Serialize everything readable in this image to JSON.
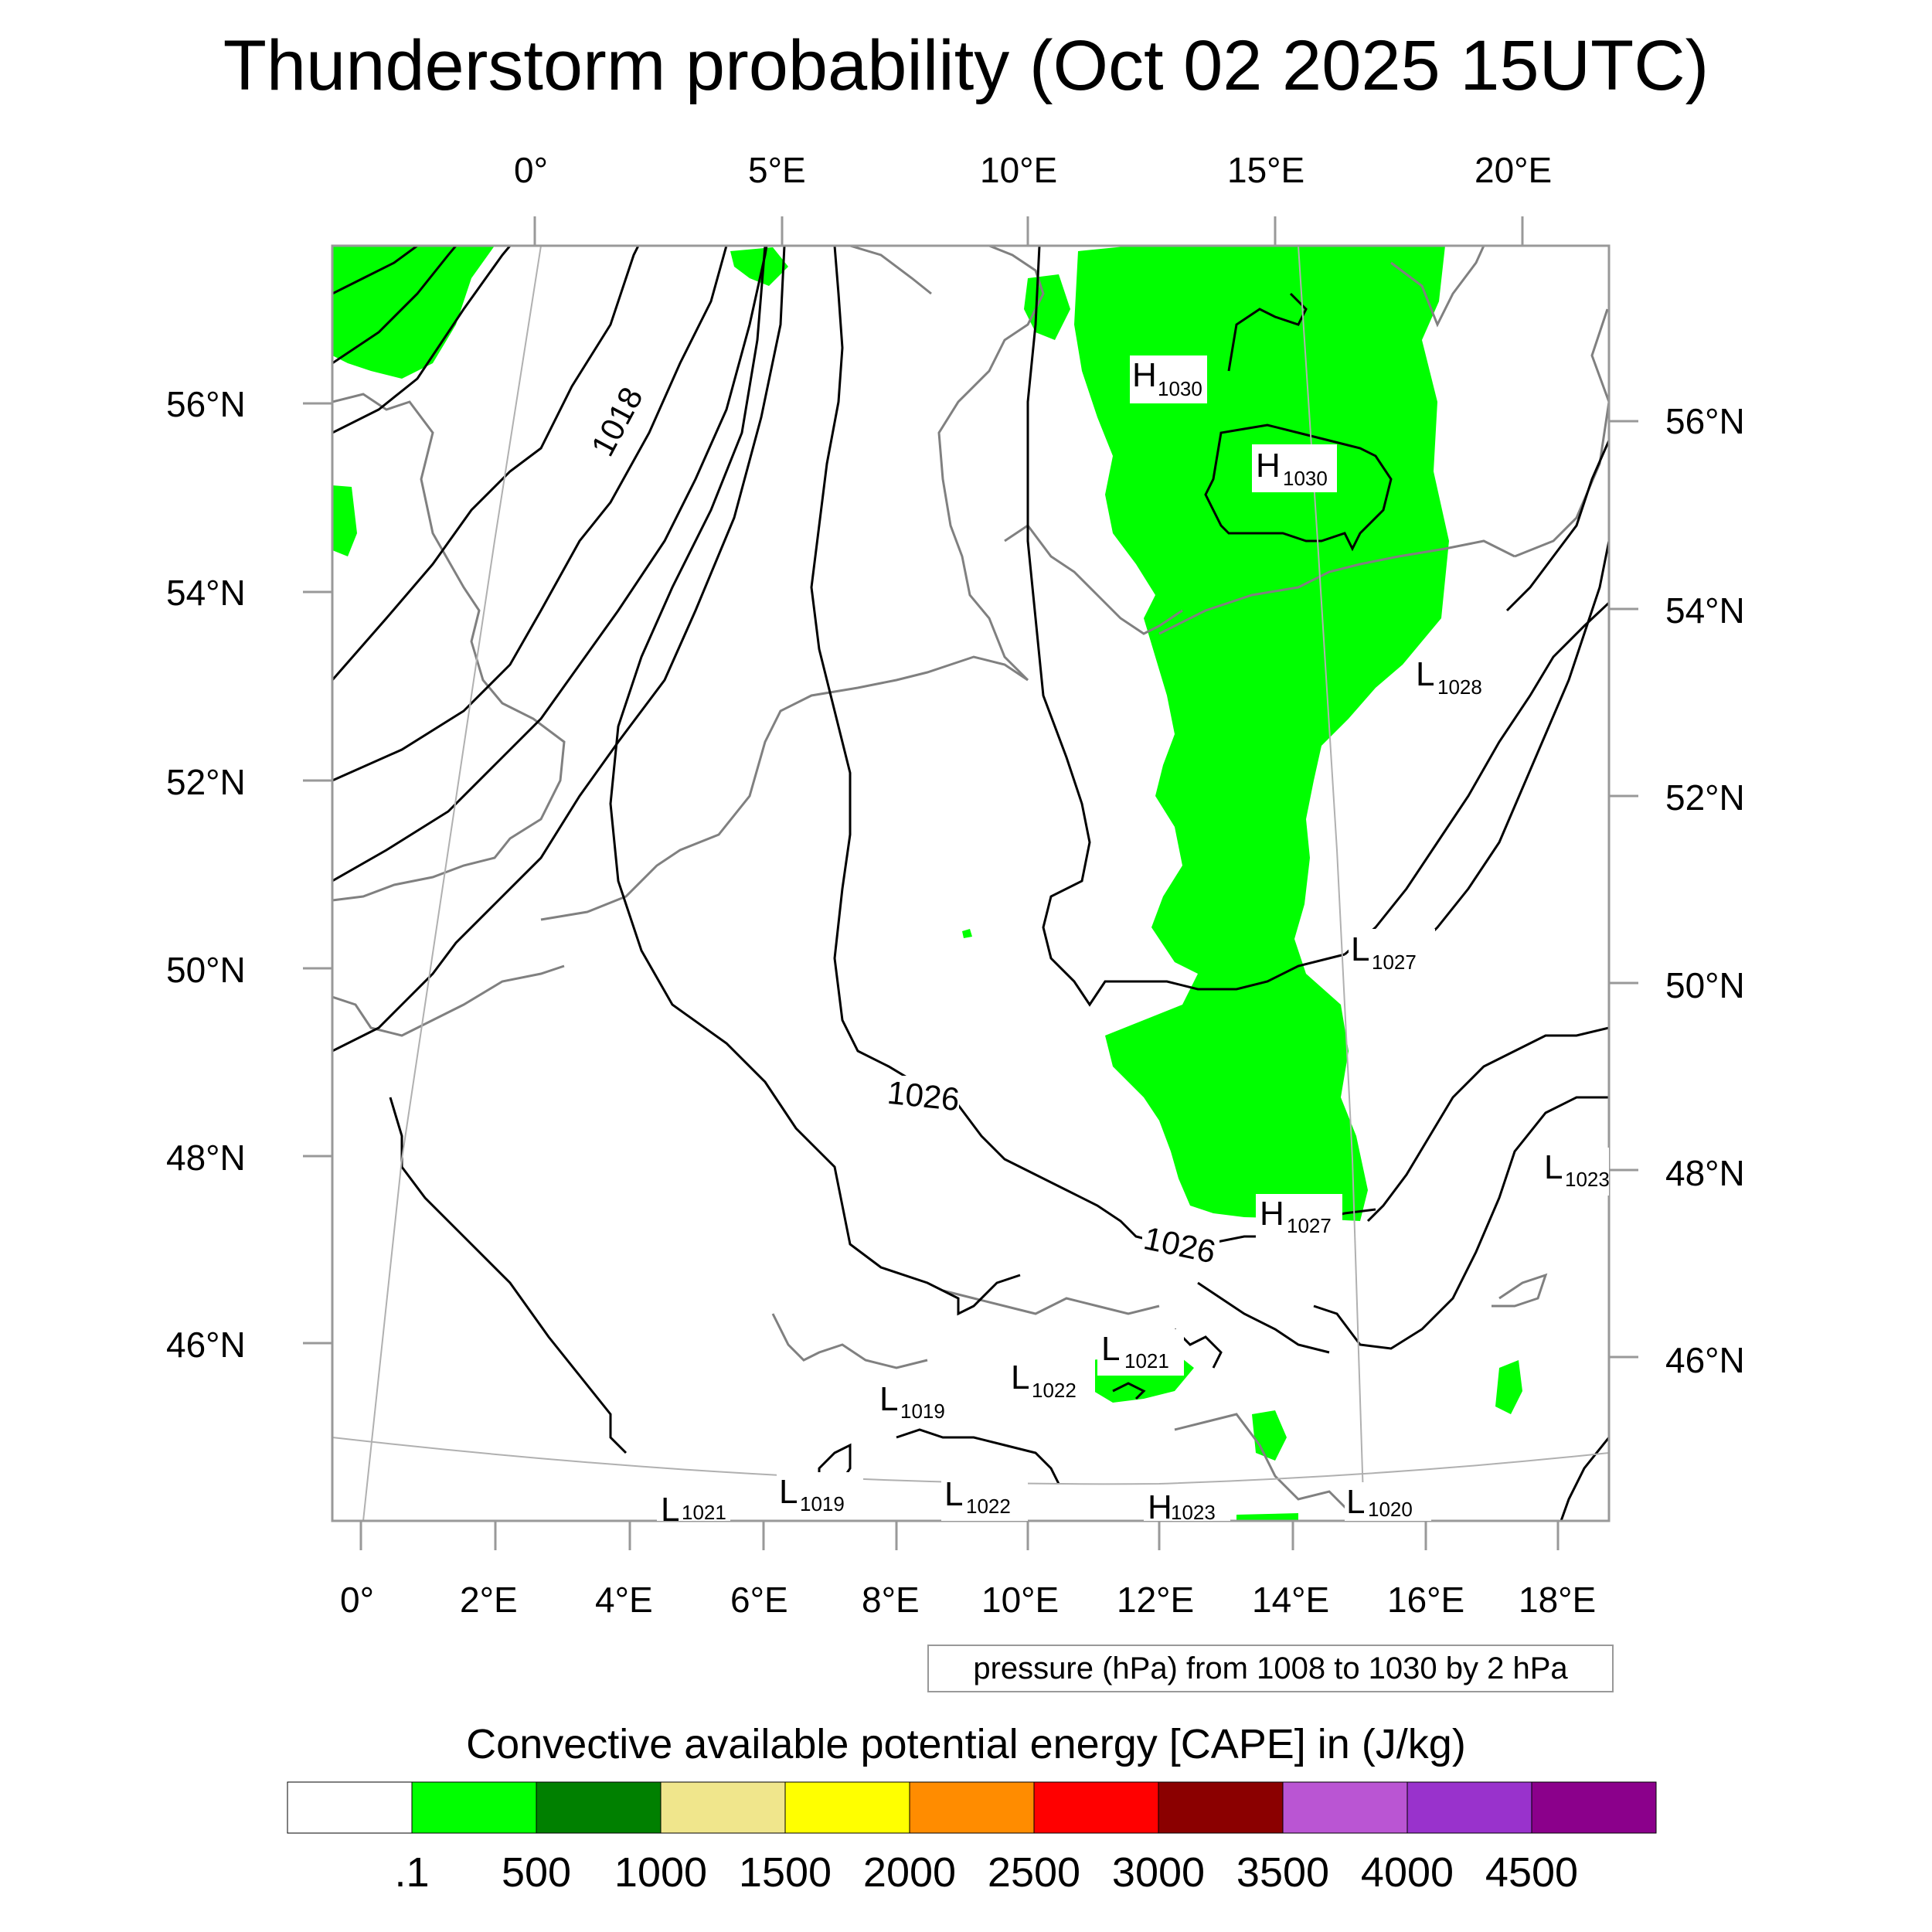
{
  "title": "Thunderstorm probability (Oct 02 2025 15UTC)",
  "top_axis_labels": [
    "0°",
    "5°E",
    "10°E",
    "15°E",
    "20°E"
  ],
  "bottom_axis_labels": [
    "0°",
    "2°E",
    "4°E",
    "6°E",
    "8°E",
    "10°E",
    "12°E",
    "14°E",
    "16°E",
    "18°E"
  ],
  "left_axis_labels": [
    "56°N",
    "54°N",
    "52°N",
    "50°N",
    "48°N",
    "46°N"
  ],
  "right_axis_labels": [
    "56°N",
    "54°N",
    "52°N",
    "50°N",
    "48°N",
    "46°N"
  ],
  "contour_labels": [
    "1018",
    "1026",
    "1026"
  ],
  "pressure_centers": [
    {
      "type": "H",
      "value": "1030"
    },
    {
      "type": "H",
      "value": "1030"
    },
    {
      "type": "L",
      "value": "1028"
    },
    {
      "type": "L",
      "value": "1027"
    },
    {
      "type": "L",
      "value": "1023"
    },
    {
      "type": "H",
      "value": "1027"
    },
    {
      "type": "L",
      "value": "1021"
    },
    {
      "type": "L",
      "value": "1022"
    },
    {
      "type": "L",
      "value": "1019"
    },
    {
      "type": "L",
      "value": "1019"
    },
    {
      "type": "L",
      "value": "1022"
    },
    {
      "type": "H",
      "value": "1023"
    },
    {
      "type": "L",
      "value": "1020"
    },
    {
      "type": "L",
      "value": "1021"
    }
  ],
  "contour_info": "pressure (hPa) from 1008 to 1030 by 2 hPa",
  "colorbar": {
    "title": "Convective available potential energy [CAPE] in (J/kg)",
    "labels": [
      ".1",
      "500",
      "1000",
      "1500",
      "2000",
      "2500",
      "3000",
      "3500",
      "4000",
      "4500"
    ],
    "colors": [
      "#ffffff",
      "#00ff00",
      "#008000",
      "#f0e68c",
      "#ffff00",
      "#ff8c00",
      "#ff0000",
      "#8b0000",
      "#ba55d3",
      "#9932cc",
      "#8b008b"
    ]
  }
}
